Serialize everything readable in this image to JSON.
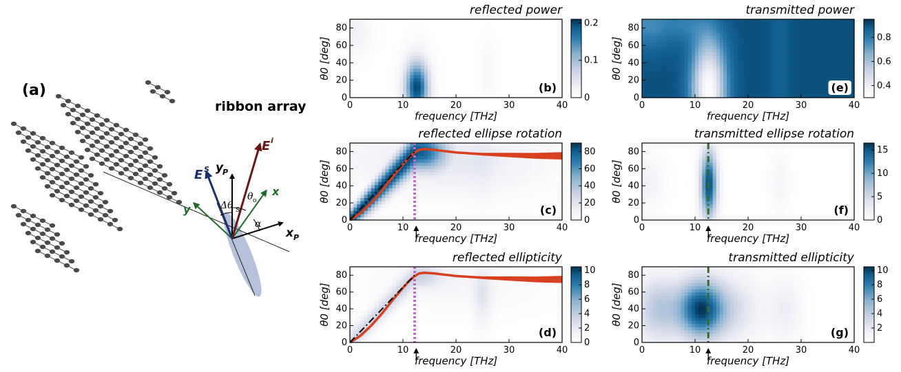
{
  "diagram": {
    "label": "(a)",
    "title": "ribbon array",
    "vectors": {
      "incident": "E",
      "incident_sup": "i",
      "scattered": "E",
      "scattered_sup": "S",
      "x": "x",
      "y": "y",
      "xp": "x",
      "xp_sub": "P",
      "yp": "y",
      "yp_sub": "P"
    },
    "angles": {
      "theta": "θ",
      "theta_sub": "o",
      "delta_theta": "Δθ",
      "delta_sub": "S",
      "alpha": "α"
    },
    "colors": {
      "incident": "#6b1414",
      "scattered": "#1a2f6e",
      "xy_axes": "#1f6b2a",
      "ellipse": "#a9b7d6",
      "atoms": "#4a4a4a"
    }
  },
  "chart_data": [
    {
      "id": "b",
      "type": "heatmap",
      "title": "reflected power",
      "panel_label": "(b)",
      "xlabel": "frequency [THz]",
      "ylabel": "θ0 [deg]",
      "xlim": [
        0,
        40
      ],
      "ylim": [
        0,
        90
      ],
      "xticks": [
        "0",
        "10",
        "20",
        "30",
        "40"
      ],
      "yticks": [
        "0",
        "20",
        "40",
        "60",
        "80"
      ],
      "colorbar": {
        "ticks": [
          "0",
          "0.1",
          "0.2"
        ],
        "range": [
          0,
          0.21
        ]
      },
      "field": "reflected_power",
      "marker_arrow": false,
      "vline": null,
      "curves": []
    },
    {
      "id": "c",
      "type": "heatmap",
      "title": "reflected ellipse rotation",
      "panel_label": "(c)",
      "xlabel": "frequency [THz]",
      "ylabel": "θ0 [deg]",
      "xlim": [
        0,
        40
      ],
      "ylim": [
        0,
        90
      ],
      "xticks": [
        "0",
        "10",
        "20",
        "30",
        "40"
      ],
      "yticks": [
        "0",
        "20",
        "40",
        "60",
        "80"
      ],
      "colorbar": {
        "ticks": [
          "0",
          "20",
          "40",
          "60",
          "80"
        ],
        "range": [
          0,
          90
        ]
      },
      "field": "reflected_rotation",
      "marker_arrow": true,
      "marker_frequency": 12.5,
      "vline": {
        "x": 12.2,
        "color": "#c06cc6",
        "style": "dotted"
      },
      "curves": [
        {
          "name": "",
          "color": "#d8401f",
          "style": "thick",
          "points": [
            [
              0,
              0
            ],
            [
              2,
              8
            ],
            [
              4,
              20
            ],
            [
              6,
              34
            ],
            [
              8,
              50
            ],
            [
              10,
              65
            ],
            [
              11,
              72
            ],
            [
              12,
              78
            ],
            [
              13,
              82
            ],
            [
              14,
              83
            ],
            [
              16,
              82
            ],
            [
              20,
              79
            ],
            [
              25,
              77
            ],
            [
              30,
              76
            ],
            [
              35,
              75
            ],
            [
              40,
              75
            ]
          ]
        },
        {
          "name": "",
          "color": "#111111",
          "style": "dashdot",
          "points": [
            [
              0,
              0
            ],
            [
              12.2,
              80
            ]
          ]
        }
      ]
    },
    {
      "id": "d",
      "type": "heatmap",
      "title": "reflected ellipticity",
      "panel_label": "(d)",
      "xlabel": "frequency [THz]",
      "ylabel": "θ0 [deg]",
      "xlim": [
        0,
        40
      ],
      "ylim": [
        0,
        90
      ],
      "xticks": [
        "0",
        "10",
        "20",
        "30",
        "40"
      ],
      "yticks": [
        "0",
        "20",
        "40",
        "60",
        "80"
      ],
      "colorbar": {
        "ticks": [
          "0",
          "2",
          "4",
          "6",
          "8",
          "10"
        ],
        "range": [
          0,
          10.5
        ]
      },
      "field": "reflected_ellipticity",
      "marker_arrow": true,
      "marker_frequency": 12.5,
      "vline": {
        "x": 12.2,
        "color": "#c06cc6",
        "style": "dotted"
      },
      "curves": [
        {
          "name": "",
          "color": "#d8401f",
          "style": "thick",
          "points": [
            [
              0,
              0
            ],
            [
              2,
              8
            ],
            [
              4,
              20
            ],
            [
              6,
              34
            ],
            [
              8,
              50
            ],
            [
              10,
              65
            ],
            [
              11,
              72
            ],
            [
              12,
              78
            ],
            [
              13,
              82
            ],
            [
              14,
              83
            ],
            [
              16,
              82
            ],
            [
              20,
              79
            ],
            [
              25,
              77
            ],
            [
              30,
              76
            ],
            [
              35,
              75
            ],
            [
              40,
              75
            ]
          ]
        },
        {
          "name": "",
          "color": "#111111",
          "style": "dashdot",
          "points": [
            [
              0,
              0
            ],
            [
              12.2,
              80
            ]
          ]
        }
      ]
    },
    {
      "id": "e",
      "type": "heatmap",
      "title": "transmitted power",
      "panel_label": "(e)",
      "xlabel": "frequency [THz]",
      "ylabel": "θ0 [deg]",
      "xlim": [
        0,
        40
      ],
      "ylim": [
        0,
        90
      ],
      "xticks": [
        "0",
        "10",
        "20",
        "30",
        "40"
      ],
      "yticks": [
        "0",
        "20",
        "40",
        "60",
        "80"
      ],
      "colorbar": {
        "ticks": [
          "0.4",
          "0.6",
          "0.8"
        ],
        "range": [
          0.3,
          0.95
        ]
      },
      "field": "transmitted_power",
      "marker_arrow": false,
      "vline": null,
      "curves": []
    },
    {
      "id": "f",
      "type": "heatmap",
      "title": "transmitted ellipse rotation",
      "panel_label": "(f)",
      "xlabel": "frequency [THz]",
      "ylabel": "θ0 [deg]",
      "xlim": [
        0,
        40
      ],
      "ylim": [
        0,
        90
      ],
      "xticks": [
        "0",
        "10",
        "20",
        "30",
        "40"
      ],
      "yticks": [
        "0",
        "20",
        "40",
        "60",
        "80"
      ],
      "colorbar": {
        "ticks": [
          "0",
          "5",
          "10",
          "15"
        ],
        "range": [
          0,
          16.5
        ]
      },
      "field": "transmitted_rotation",
      "marker_arrow": true,
      "marker_frequency": 12.5,
      "vline": {
        "x": 12.5,
        "color": "#3a6a1a",
        "style": "dashdot"
      },
      "curves": []
    },
    {
      "id": "g",
      "type": "heatmap",
      "title": "transmitted ellipticity",
      "panel_label": "(g)",
      "xlabel": "frequency [THz]",
      "ylabel": "θ0 [deg]",
      "xlim": [
        0,
        40
      ],
      "ylim": [
        0,
        90
      ],
      "xticks": [
        "0",
        "10",
        "20",
        "30",
        "40"
      ],
      "yticks": [
        "0",
        "20",
        "40",
        "60",
        "80"
      ],
      "colorbar": {
        "ticks": [
          "2",
          "4",
          "6",
          "8",
          "10"
        ],
        "range": [
          0,
          10.5
        ]
      },
      "field": "transmitted_ellipticity",
      "marker_arrow": true,
      "marker_frequency": 12.5,
      "vline": {
        "x": 12.5,
        "color": "#3a6a1a",
        "style": "dashdot"
      },
      "curves": []
    }
  ]
}
